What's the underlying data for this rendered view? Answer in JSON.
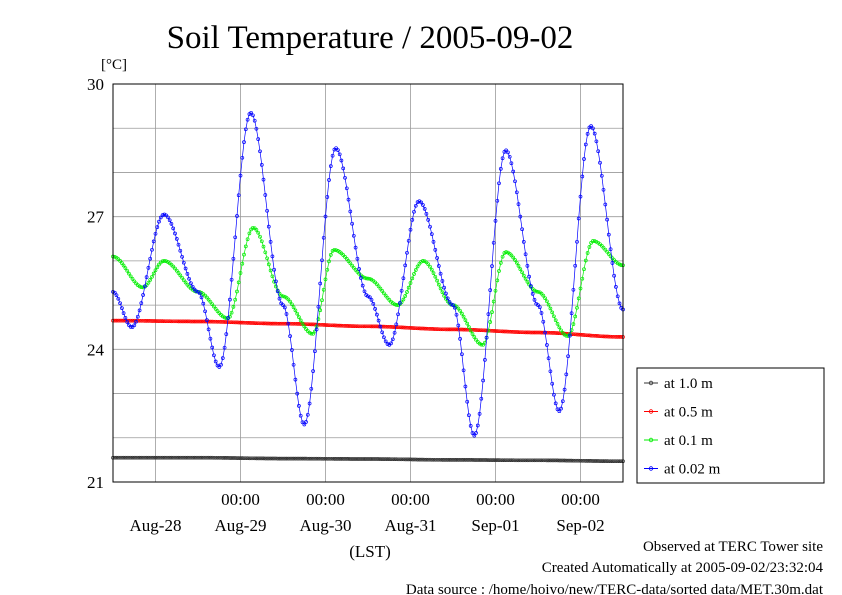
{
  "chart_data": {
    "type": "line",
    "title": "Soil Temperature / 2005-09-02",
    "ylabel": "[°C]",
    "xlabel": "(LST)",
    "ylim": [
      21,
      30
    ],
    "yticks": [
      21,
      24,
      27,
      30
    ],
    "xlim": [
      0,
      6
    ],
    "x_unit": "days from Aug-27 12:00 LST",
    "x_time_ticks": [
      "00:00",
      "00:00",
      "00:00",
      "00:00",
      "00:00"
    ],
    "x_date_labels": [
      "Aug-28",
      "Aug-29",
      "Aug-30",
      "Aug-31",
      "Sep-01",
      "Sep-02"
    ],
    "grid": true,
    "legend_position": "right",
    "series": [
      {
        "name": "at 1.0 m",
        "color": "#333333",
        "x": [
          0,
          1,
          2,
          3,
          4,
          5,
          6
        ],
        "y": [
          21.55,
          21.55,
          21.53,
          21.52,
          21.5,
          21.49,
          21.47
        ]
      },
      {
        "name": "at 0.5 m",
        "color": "#ff0000",
        "x": [
          0,
          1,
          2,
          3,
          4,
          5,
          6
        ],
        "y": [
          24.65,
          24.63,
          24.58,
          24.52,
          24.45,
          24.38,
          24.28
        ]
      },
      {
        "name": "at 0.1 m",
        "color": "#00ee00",
        "x": [
          0,
          0.35,
          0.6,
          1.0,
          1.35,
          1.65,
          2.0,
          2.35,
          2.6,
          3.0,
          3.35,
          3.65,
          4.0,
          4.35,
          4.62,
          5.0,
          5.35,
          5.65,
          6.0
        ],
        "y": [
          26.1,
          25.4,
          26.0,
          25.3,
          24.7,
          26.75,
          25.2,
          24.35,
          26.25,
          25.6,
          25.0,
          26.0,
          25.0,
          24.1,
          26.2,
          25.3,
          24.3,
          26.45,
          25.9
        ]
      },
      {
        "name": "at 0.02 m",
        "color": "#0000ff",
        "x": [
          0,
          0.22,
          0.6,
          1.0,
          1.25,
          1.62,
          2.0,
          2.25,
          2.62,
          3.0,
          3.25,
          3.6,
          4.0,
          4.25,
          4.62,
          5.0,
          5.25,
          5.62,
          6.0
        ],
        "y": [
          25.3,
          24.5,
          27.05,
          25.3,
          23.6,
          29.35,
          25.0,
          22.3,
          28.55,
          25.2,
          24.1,
          27.35,
          25.0,
          22.05,
          28.5,
          25.0,
          22.6,
          29.05,
          24.9
        ]
      }
    ]
  },
  "footer": {
    "line1": "Observed at TERC Tower site",
    "line2": "Created Automatically at 2005-09-02/23:32:04",
    "line3": "Data source : /home/hoivo/new/TERC-data/sorted  data/MET.30m.dat"
  }
}
